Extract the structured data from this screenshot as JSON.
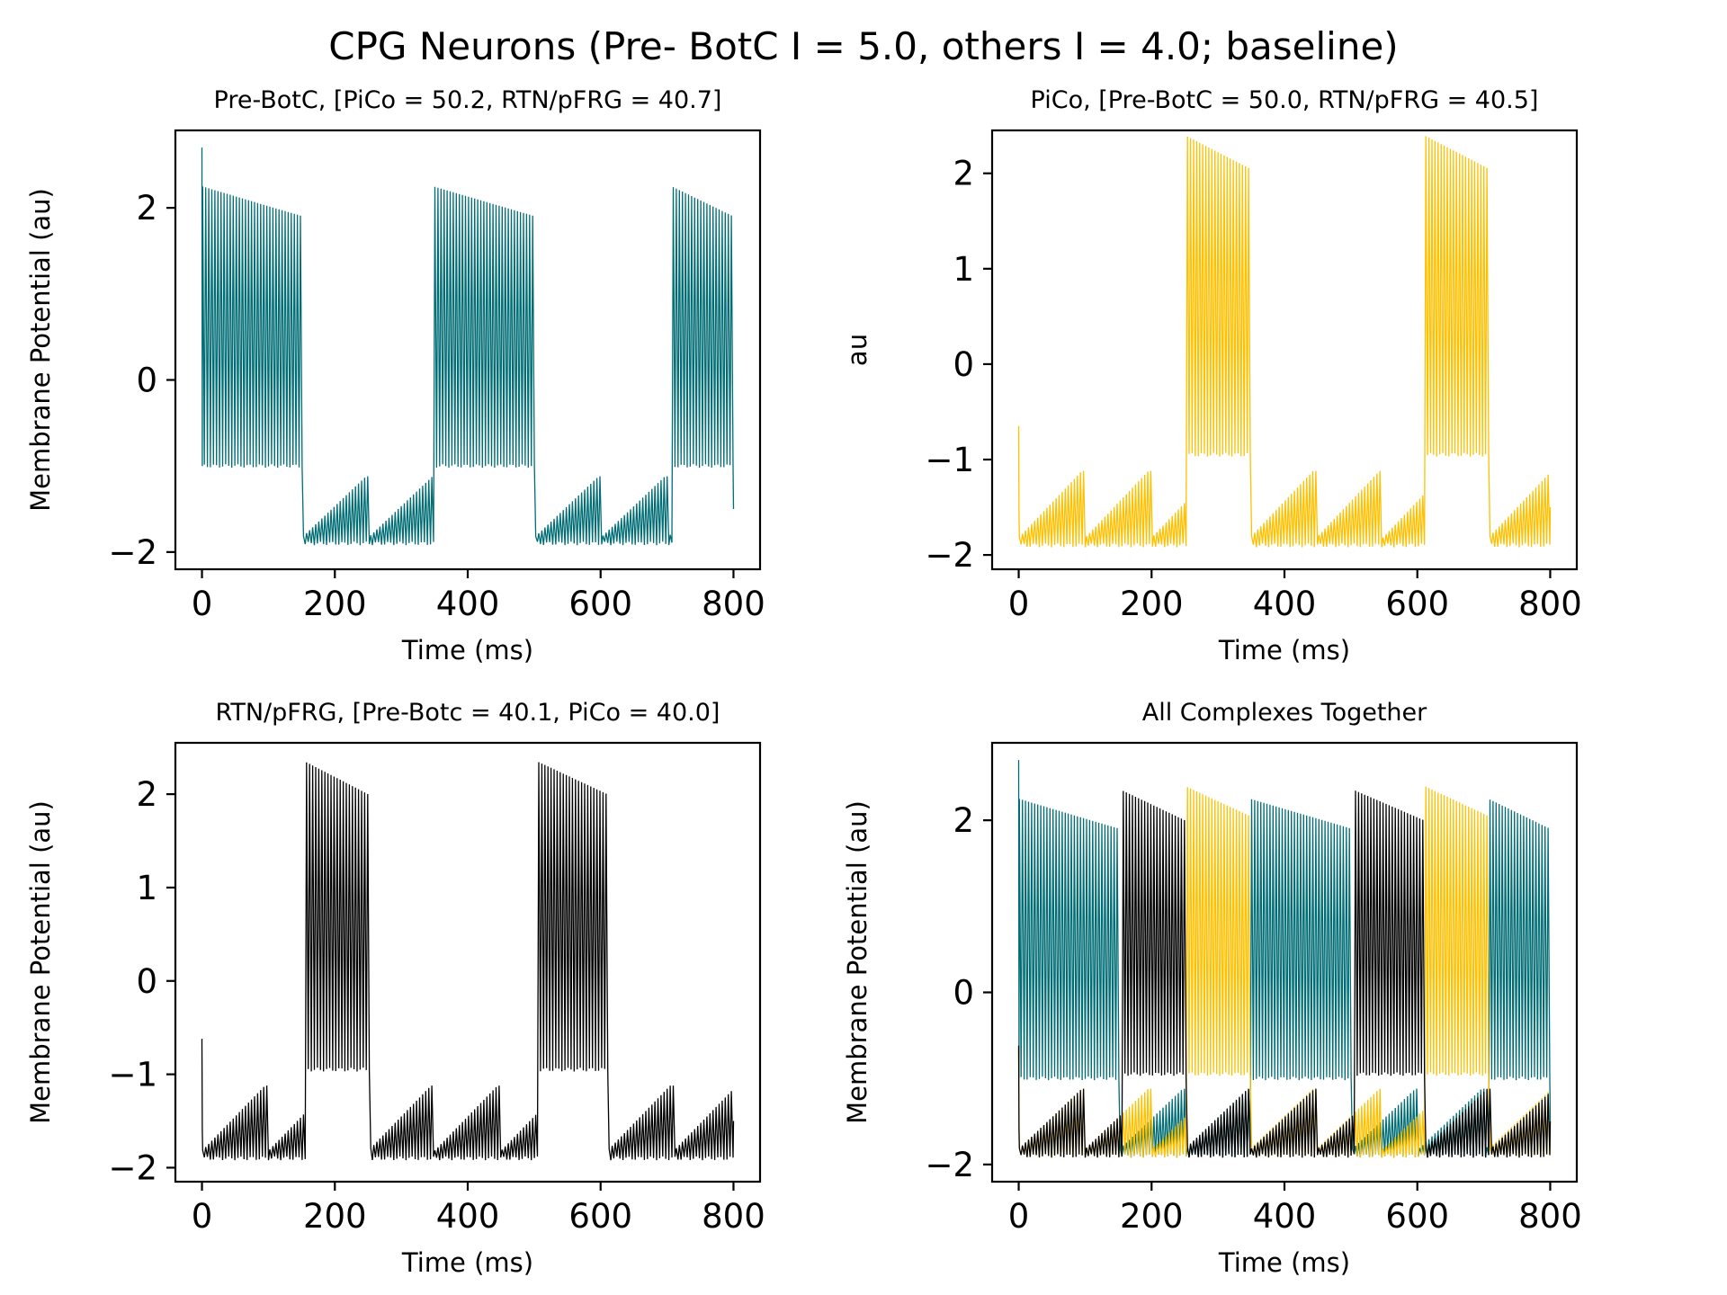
{
  "figure": {
    "title": "CPG Neurons (Pre- BotC I = 5.0, others I = 4.0; baseline)",
    "colors": {
      "Pre-BotC": "#006d75",
      "PiCo": "#ffc000",
      "RTN/pFRG": "#000000"
    }
  },
  "chart_data": [
    {
      "type": "line",
      "title": "Pre-BotC, [PiCo = 50.2, RTN/pFRG = 40.7]",
      "xlabel": "Time (ms)",
      "ylabel": "Membrane Potential (au)",
      "xlim": [
        -40,
        840
      ],
      "ylim": [
        -2.2,
        2.9
      ],
      "xticks": [
        0,
        200,
        400,
        600,
        800
      ],
      "xtick_labels": [
        "0",
        "200",
        "400",
        "600",
        "800"
      ],
      "yticks": [
        -2,
        0,
        2
      ],
      "ytick_labels": [
        "−2",
        "0",
        "2"
      ],
      "grid": false,
      "legend": "none",
      "series": [
        {
          "color": "#006d75",
          "bursts_active_ms": [
            [
              0,
              152
            ],
            [
              348,
              502
            ],
            [
              707,
              800
            ]
          ],
          "burst_peak_range": [
            2.25,
            1.9
          ],
          "burst_trough": -1.0,
          "quiet_trough": -1.9,
          "initial_spike": 2.7
        }
      ]
    },
    {
      "type": "line",
      "title": "PiCo, [Pre-BotC = 50.0, RTN/pFRG = 40.5]",
      "xlabel": "Time (ms)",
      "ylabel": "au",
      "xlim": [
        -40,
        840
      ],
      "ylim": [
        -2.15,
        2.45
      ],
      "xticks": [
        0,
        200,
        400,
        600,
        800
      ],
      "xtick_labels": [
        "0",
        "200",
        "400",
        "600",
        "800"
      ],
      "yticks": [
        -2,
        -1,
        0,
        1,
        2
      ],
      "ytick_labels": [
        "−2",
        "−1",
        "0",
        "1",
        "2"
      ],
      "grid": false,
      "legend": "none",
      "series": [
        {
          "color": "#ffc000",
          "bursts_active_ms": [
            [
              250,
              348
            ],
            [
              610,
              707
            ]
          ],
          "burst_peak_range": [
            2.4,
            2.05
          ],
          "burst_trough": -0.95,
          "quiet_trough": -1.9,
          "initial_spike": -0.65
        }
      ]
    },
    {
      "type": "line",
      "title": "RTN/pFRG, [Pre-Botc = 40.1, PiCo = 40.0]",
      "xlabel": "Time (ms)",
      "ylabel": "Membrane Potential (au)",
      "xlim": [
        -40,
        840
      ],
      "ylim": [
        -2.15,
        2.55
      ],
      "xticks": [
        0,
        200,
        400,
        600,
        800
      ],
      "xtick_labels": [
        "0",
        "200",
        "400",
        "600",
        "800"
      ],
      "yticks": [
        -2,
        -1,
        0,
        1,
        2
      ],
      "ytick_labels": [
        "−2",
        "−1",
        "0",
        "1",
        "2"
      ],
      "grid": false,
      "legend": "none",
      "series": [
        {
          "color": "#000000",
          "bursts_active_ms": [
            [
              155,
              250
            ],
            [
              505,
              610
            ]
          ],
          "burst_peak_range": [
            2.35,
            2.0
          ],
          "burst_trough": -0.95,
          "quiet_trough": -1.9,
          "initial_spike": -0.62
        }
      ]
    },
    {
      "type": "line",
      "title": "All Complexes Together",
      "xlabel": "Time (ms)",
      "ylabel": "Membrane Potential (au)",
      "xlim": [
        -40,
        840
      ],
      "ylim": [
        -2.2,
        2.9
      ],
      "xticks": [
        0,
        200,
        400,
        600,
        800
      ],
      "xtick_labels": [
        "0",
        "200",
        "400",
        "600",
        "800"
      ],
      "yticks": [
        -2,
        0,
        2
      ],
      "ytick_labels": [
        "−2",
        "0",
        "2"
      ],
      "grid": false,
      "legend": "none",
      "series": [
        {
          "color": "#006d75",
          "bursts_active_ms": [
            [
              0,
              152
            ],
            [
              348,
              502
            ],
            [
              707,
              800
            ]
          ],
          "burst_peak_range": [
            2.25,
            1.9
          ],
          "burst_trough": -1.0,
          "quiet_trough": -1.9,
          "initial_spike": 2.7
        },
        {
          "color": "#ffc000",
          "bursts_active_ms": [
            [
              250,
              348
            ],
            [
              610,
              707
            ]
          ],
          "burst_peak_range": [
            2.4,
            2.05
          ],
          "burst_trough": -0.95,
          "quiet_trough": -1.9,
          "initial_spike": -0.65
        },
        {
          "color": "#000000",
          "bursts_active_ms": [
            [
              155,
              250
            ],
            [
              505,
              610
            ]
          ],
          "burst_peak_range": [
            2.35,
            2.0
          ],
          "burst_trough": -0.95,
          "quiet_trough": -1.9,
          "initial_spike": -0.62
        }
      ]
    }
  ]
}
